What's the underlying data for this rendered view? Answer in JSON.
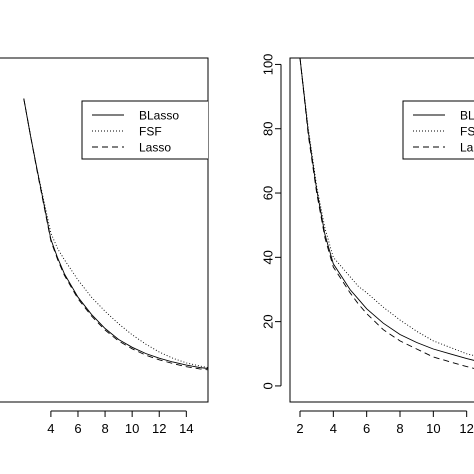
{
  "chart_data": [
    {
      "type": "line",
      "title": "",
      "xlabel": "",
      "ylabel": "",
      "xlim": [
        -0.2,
        15.6
      ],
      "ylim": [
        -5,
        105
      ],
      "x_ticks": [
        4,
        6,
        8,
        10,
        12,
        14
      ],
      "y_ticks": [],
      "legend": {
        "position": "top-right",
        "entries": [
          "BLasso",
          "FSF",
          "Lasso"
        ]
      },
      "series": [
        {
          "name": "BLasso",
          "line_style": "solid",
          "x": [
            2.0,
            2.5,
            3.0,
            3.5,
            4.0,
            4.5,
            5.0,
            6.0,
            7.0,
            8.0,
            9.0,
            10.0,
            11.0,
            12.0,
            13.0,
            14.0,
            15.0,
            15.6
          ],
          "y": [
            92,
            80,
            69,
            58,
            47,
            41,
            36,
            28.5,
            23,
            18.5,
            15,
            12.5,
            10.5,
            9,
            7.8,
            6.8,
            6,
            5.7
          ]
        },
        {
          "name": "FSF",
          "line_style": "dotted",
          "x": [
            2.0,
            2.5,
            3.0,
            3.5,
            4.0,
            4.5,
            5.0,
            6.0,
            7.0,
            8.0,
            9.0,
            10.0,
            11.0,
            12.0,
            13.0,
            14.0,
            15.0,
            15.6
          ],
          "y": [
            92,
            80,
            69,
            59,
            49,
            44,
            40.5,
            34,
            28.5,
            24,
            20,
            16.5,
            13.5,
            11,
            9,
            7.5,
            6.5,
            6
          ]
        },
        {
          "name": "Lasso",
          "line_style": "dashed",
          "x": [
            2.0,
            2.5,
            3.0,
            3.5,
            4.0,
            4.5,
            5.0,
            6.0,
            7.0,
            8.0,
            9.0,
            10.0,
            11.0,
            12.0,
            13.0,
            14.0,
            15.0,
            15.6
          ],
          "y": [
            92,
            80,
            68.5,
            57.5,
            46.5,
            40.5,
            35.5,
            28,
            22.5,
            18,
            14.5,
            12,
            10,
            8.5,
            7.3,
            6.3,
            5.6,
            5.3
          ]
        }
      ]
    },
    {
      "type": "line",
      "title": "",
      "xlabel": "",
      "ylabel": "",
      "xlim": [
        1.4,
        12.8
      ],
      "ylim": [
        -5,
        102
      ],
      "x_ticks": [
        2,
        4,
        6,
        8,
        10,
        12
      ],
      "y_ticks": [
        0,
        20,
        40,
        60,
        80,
        100
      ],
      "legend": {
        "position": "top-right",
        "entries": [
          "BL",
          "FS",
          "La"
        ]
      },
      "series": [
        {
          "name": "BL",
          "line_style": "solid",
          "x": [
            2.0,
            2.5,
            3.0,
            3.5,
            4.0,
            4.5,
            5.0,
            5.5,
            6.0,
            7.0,
            8.0,
            9.0,
            10.0,
            11.0,
            12.0,
            12.8
          ],
          "y": [
            102,
            79,
            61,
            47,
            38,
            34,
            30,
            27,
            24,
            19.5,
            16,
            13.5,
            11.5,
            10,
            8.5,
            7.5
          ]
        },
        {
          "name": "FS",
          "line_style": "dotted",
          "x": [
            2.0,
            2.5,
            3.0,
            3.5,
            4.0,
            4.5,
            5.0,
            5.5,
            6.0,
            7.0,
            8.0,
            9.0,
            10.0,
            11.0,
            12.0,
            12.8
          ],
          "y": [
            102,
            80,
            62,
            49,
            40,
            37,
            34,
            31,
            29,
            24.5,
            20.5,
            17,
            14,
            12,
            10,
            9
          ]
        },
        {
          "name": "La",
          "line_style": "dashed",
          "x": [
            2.0,
            2.5,
            3.0,
            3.5,
            4.0,
            4.5,
            5.0,
            5.5,
            6.0,
            7.0,
            8.0,
            9.0,
            10.0,
            11.0,
            12.0,
            12.8
          ],
          "y": [
            102,
            78,
            60,
            46,
            37,
            33,
            29,
            25.5,
            22.5,
            17.5,
            14,
            11.5,
            9,
            7.5,
            6,
            5
          ]
        }
      ]
    }
  ]
}
